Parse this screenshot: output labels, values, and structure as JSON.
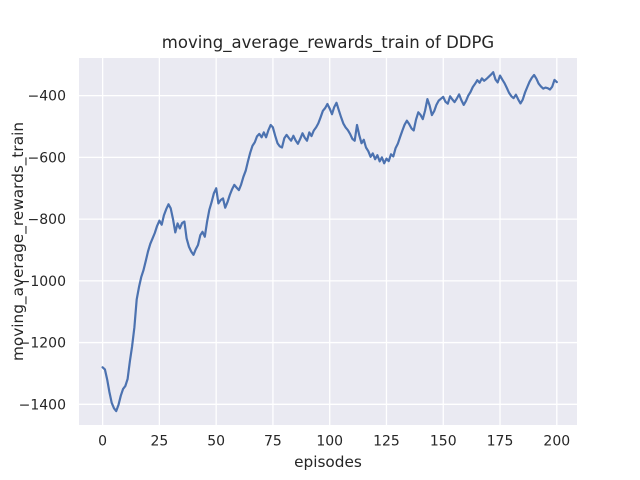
{
  "figure": {
    "background": "#ffffff",
    "axes_background": "#eaeaf2",
    "grid_color": "#ffffff",
    "text_color": "#262626"
  },
  "chart_data": {
    "type": "line",
    "title": "moving_average_rewards_train of DDPG",
    "xlabel": "episodes",
    "ylabel": "moving_average_rewards_train",
    "grid": true,
    "legend_position": "none",
    "xlim": [
      -10.4,
      208.9
    ],
    "ylim": [
      -1467,
      -278
    ],
    "xticks": [
      0,
      25,
      50,
      75,
      100,
      125,
      150,
      175,
      200
    ],
    "yticks": [
      -400,
      -600,
      -800,
      -1000,
      -1200,
      -1400
    ],
    "series": [
      {
        "name": "moving_average_rewards_train",
        "color": "#4c72b0",
        "x_range": [
          0,
          200,
          1
        ],
        "y": [
          -1280,
          -1287,
          -1320,
          -1360,
          -1395,
          -1413,
          -1422,
          -1402,
          -1372,
          -1350,
          -1341,
          -1318,
          -1260,
          -1212,
          -1150,
          -1060,
          -1020,
          -988,
          -965,
          -935,
          -905,
          -880,
          -862,
          -845,
          -822,
          -805,
          -818,
          -788,
          -768,
          -752,
          -765,
          -800,
          -843,
          -814,
          -830,
          -813,
          -808,
          -862,
          -889,
          -905,
          -916,
          -898,
          -884,
          -852,
          -841,
          -857,
          -808,
          -770,
          -745,
          -716,
          -700,
          -749,
          -738,
          -733,
          -763,
          -745,
          -722,
          -703,
          -689,
          -698,
          -706,
          -688,
          -663,
          -643,
          -612,
          -585,
          -562,
          -551,
          -532,
          -524,
          -535,
          -519,
          -535,
          -512,
          -495,
          -503,
          -530,
          -554,
          -564,
          -568,
          -538,
          -527,
          -537,
          -546,
          -530,
          -545,
          -556,
          -540,
          -522,
          -536,
          -546,
          -519,
          -531,
          -513,
          -503,
          -490,
          -470,
          -449,
          -440,
          -427,
          -442,
          -460,
          -437,
          -423,
          -447,
          -470,
          -490,
          -503,
          -512,
          -524,
          -540,
          -546,
          -495,
          -527,
          -554,
          -543,
          -568,
          -580,
          -598,
          -587,
          -606,
          -593,
          -613,
          -600,
          -619,
          -604,
          -612,
          -590,
          -597,
          -570,
          -556,
          -534,
          -513,
          -494,
          -481,
          -492,
          -506,
          -513,
          -478,
          -454,
          -462,
          -476,
          -448,
          -411,
          -432,
          -463,
          -450,
          -430,
          -416,
          -410,
          -404,
          -420,
          -426,
          -402,
          -412,
          -421,
          -409,
          -396,
          -415,
          -430,
          -417,
          -400,
          -388,
          -372,
          -362,
          -350,
          -358,
          -344,
          -352,
          -346,
          -339,
          -332,
          -324,
          -348,
          -357,
          -335,
          -348,
          -360,
          -375,
          -391,
          -402,
          -408,
          -397,
          -412,
          -425,
          -413,
          -390,
          -372,
          -355,
          -342,
          -333,
          -345,
          -361,
          -370,
          -377,
          -374,
          -376,
          -380,
          -371,
          -349,
          -356
        ]
      }
    ]
  }
}
